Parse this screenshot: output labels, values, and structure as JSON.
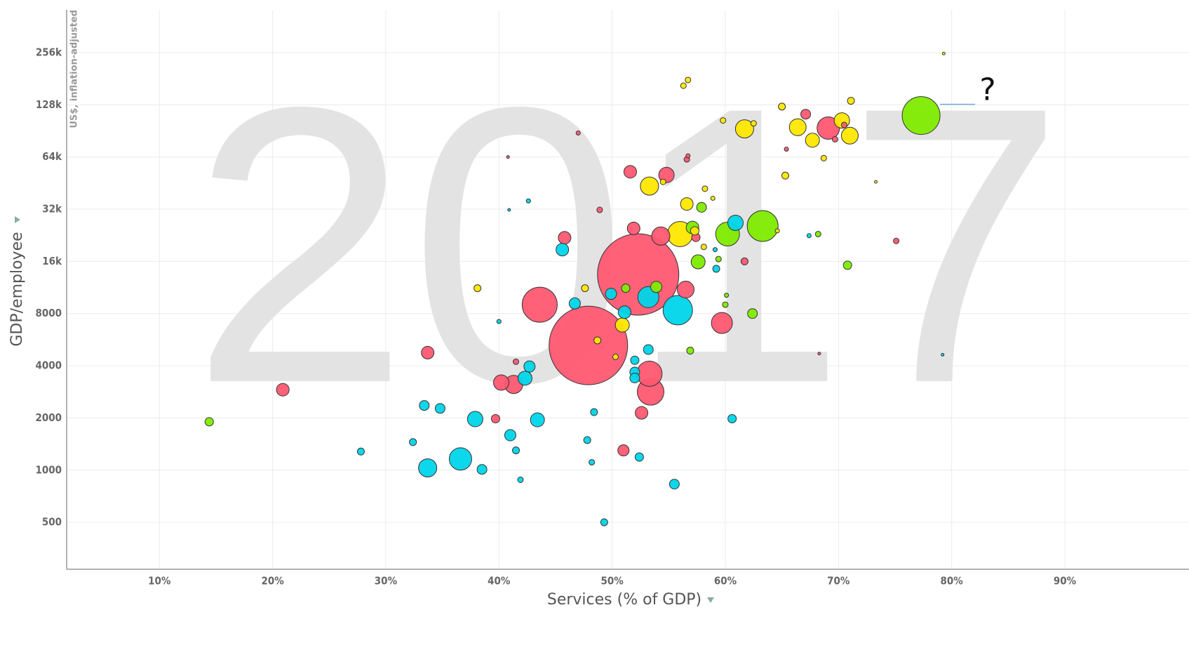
{
  "chart_data": {
    "type": "scatter",
    "watermark": "2017",
    "xlabel": "Services (% of GDP)",
    "ylabel": "GDP/employee",
    "ylabel_note": "US$, inflation-adjusted",
    "annotation": {
      "text": "?",
      "series": 3,
      "index": 8
    },
    "xlim": [
      1.8,
      93.1
    ],
    "ylim": [
      268,
      452000
    ],
    "ylog": true,
    "grid": true,
    "xticks": [
      {
        "value": 10,
        "label": "10%"
      },
      {
        "value": 20,
        "label": "20%"
      },
      {
        "value": 30,
        "label": "30%"
      },
      {
        "value": 40,
        "label": "40%"
      },
      {
        "value": 50,
        "label": "50%"
      },
      {
        "value": 60,
        "label": "60%"
      },
      {
        "value": 70,
        "label": "70%"
      },
      {
        "value": 80,
        "label": "80%"
      },
      {
        "value": 90,
        "label": "90%"
      }
    ],
    "yticks": [
      500,
      1000,
      2000,
      4000,
      8000,
      {
        "value": 16000,
        "label": "16k"
      },
      {
        "value": 32000,
        "label": "32k"
      },
      {
        "value": 64000,
        "label": "64k"
      },
      {
        "value": 128000,
        "label": "128k"
      },
      {
        "value": 256000,
        "label": "256k"
      }
    ],
    "series": [
      {
        "color": "#ff5872",
        "x": [
          20.9,
          33.7,
          39.7,
          40.2,
          41.3,
          41.5,
          43.6,
          47.9,
          52.3,
          53.4,
          53.3,
          45.8,
          51.0,
          52.6,
          59.7,
          56.5,
          51.9,
          54.3,
          54.8,
          51.6,
          69.1,
          67.1,
          75.1,
          61.7,
          65.4,
          69.7,
          70.5,
          56.6,
          56.7,
          68.3,
          47.0,
          48.9,
          40.8,
          57.4
        ],
        "values": [
          2910,
          4760,
          1980,
          3200,
          3120,
          4220,
          9000,
          5240,
          13450,
          2830,
          3600,
          21900,
          1300,
          2140,
          7060,
          11000,
          24800,
          22400,
          50400,
          52600,
          94000,
          113000,
          21000,
          16000,
          71000,
          81000,
          98000,
          62000,
          65000,
          4700,
          88000,
          31700,
          64000,
          22000
        ],
        "sizes": [
          9,
          9,
          6,
          11,
          13,
          4,
          25,
          56,
          58,
          19,
          18,
          9,
          8,
          9,
          15,
          12,
          9,
          13,
          11,
          9,
          16,
          7,
          4,
          5,
          3,
          4,
          4,
          4,
          3,
          2,
          3,
          4,
          2,
          6
        ]
      },
      {
        "color": "#00d5e9",
        "x": [
          27.8,
          32.4,
          33.4,
          34.8,
          33.7,
          36.6,
          38.5,
          37.9,
          41.0,
          41.5,
          41.9,
          43.4,
          42.3,
          42.7,
          45.6,
          46.7,
          47.8,
          48.2,
          48.4,
          49.3,
          52.4,
          55.5,
          60.6,
          55.8,
          53.2,
          51.1,
          49.9,
          60.9,
          59.2,
          53.2,
          52.0,
          52.0,
          52.0,
          67.4,
          79.2,
          40.0,
          42.6,
          40.9,
          59.1
        ],
        "values": [
          1280,
          1450,
          2360,
          2270,
          1030,
          1160,
          1010,
          1970,
          1590,
          1300,
          880,
          1950,
          3390,
          3960,
          18700,
          9150,
          1490,
          1110,
          2160,
          500,
          1190,
          830,
          1980,
          8370,
          9950,
          8150,
          10400,
          26700,
          14500,
          4960,
          4300,
          3680,
          3400,
          22500,
          4630,
          7200,
          35700,
          31700,
          18700
        ],
        "sizes": [
          5,
          5,
          7,
          7,
          13,
          16,
          7,
          11,
          8,
          5,
          4,
          10,
          10,
          8,
          9,
          8,
          5,
          4,
          5,
          5,
          6,
          7,
          6,
          21,
          15,
          9,
          8,
          11,
          5,
          7,
          6,
          7,
          7,
          3,
          2,
          3,
          3,
          2,
          3
        ]
      },
      {
        "color": "#ffe700",
        "x": [
          50.9,
          56.0,
          53.3,
          56.6,
          61.7,
          66.4,
          67.7,
          70.3,
          71.0,
          65.3,
          48.7,
          50.3,
          38.1,
          47.6,
          71.1,
          56.7,
          56.3,
          59.8,
          65.0,
          62.5,
          68.7,
          64.6,
          79.3,
          73.3,
          57.3,
          58.1,
          58.2,
          58.9,
          54.5
        ],
        "values": [
          6870,
          23000,
          43500,
          34300,
          93000,
          95000,
          80000,
          104000,
          85000,
          50000,
          5600,
          4500,
          11200,
          11200,
          135000,
          178000,
          165000,
          104000,
          125000,
          100000,
          63000,
          24000,
          253000,
          46000,
          24000,
          19400,
          42000,
          37000,
          46000
        ],
        "sizes": [
          10,
          18,
          13,
          9,
          13,
          12,
          10,
          11,
          12,
          5,
          5,
          4,
          5,
          5,
          5,
          4,
          4,
          4,
          5,
          4,
          4,
          3,
          2,
          2,
          6,
          4,
          4,
          3,
          4
        ]
      },
      {
        "color": "#7feb00",
        "x": [
          14.4,
          51.2,
          53.9,
          57.1,
          57.6,
          57.9,
          60.2,
          63.3,
          77.3,
          70.8,
          62.4,
          56.9,
          68.2,
          60.0,
          60.1,
          59.4
        ],
        "values": [
          1900,
          11200,
          11400,
          25100,
          15900,
          32800,
          23000,
          25600,
          111000,
          15200,
          8000,
          4890,
          23000,
          9000,
          10200,
          16500
        ],
        "sizes": [
          6,
          6,
          8,
          9,
          10,
          7,
          17,
          22,
          27,
          6,
          7,
          5,
          4,
          4,
          3,
          4
        ]
      }
    ]
  }
}
